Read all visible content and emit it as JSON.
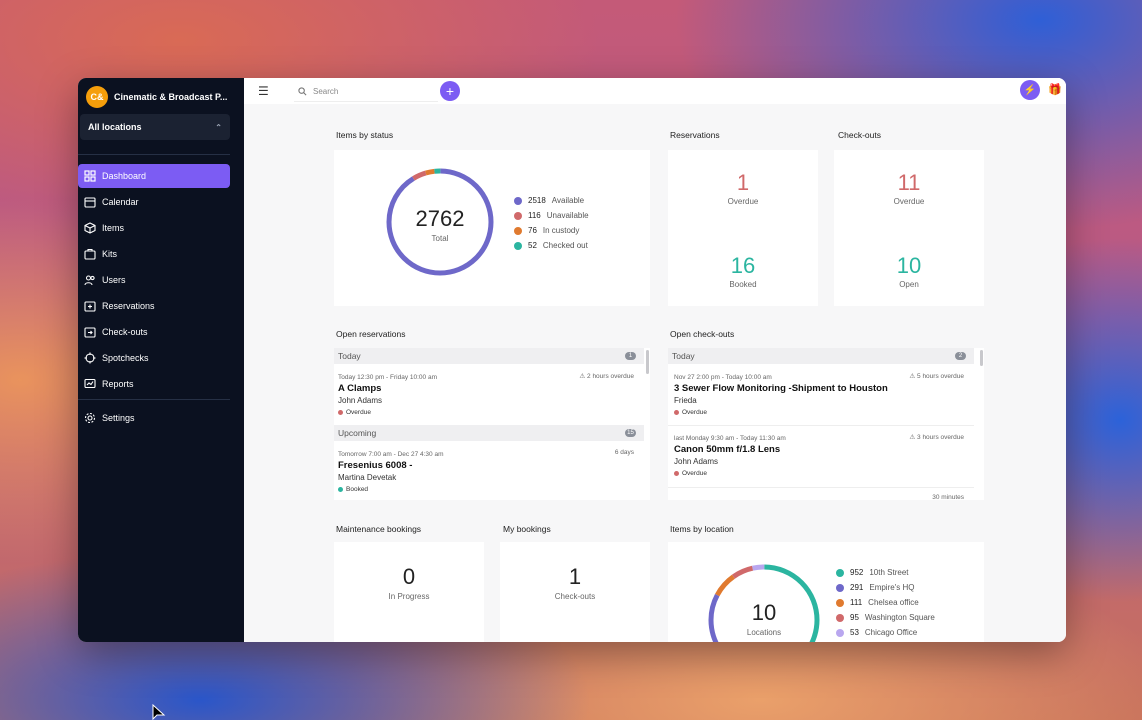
{
  "org": {
    "initials": "C&",
    "name": "Cinematic & Broadcast P..."
  },
  "location_select": {
    "value": "All locations"
  },
  "nav": [
    {
      "label": "Dashboard",
      "icon": "dashboard-icon",
      "active": true
    },
    {
      "label": "Calendar",
      "icon": "calendar-icon"
    },
    {
      "label": "Items",
      "icon": "cube-icon"
    },
    {
      "label": "Kits",
      "icon": "kit-icon"
    },
    {
      "label": "Users",
      "icon": "users-icon"
    },
    {
      "label": "Reservations",
      "icon": "reservation-icon"
    },
    {
      "label": "Check-outs",
      "icon": "checkout-icon"
    },
    {
      "label": "Spotchecks",
      "icon": "target-icon"
    },
    {
      "label": "Reports",
      "icon": "report-icon"
    },
    {
      "label": "Settings",
      "icon": "gear-icon"
    }
  ],
  "topbar": {
    "search_placeholder": "Search"
  },
  "items_by_status": {
    "title": "Items by status",
    "total": "2762",
    "total_label": "Total",
    "legend": [
      {
        "count": "2518",
        "label": "Available",
        "color": "#6e68c9"
      },
      {
        "count": "116",
        "label": "Unavailable",
        "color": "#d0696a"
      },
      {
        "count": "76",
        "label": "In custody",
        "color": "#e07a2f"
      },
      {
        "count": "52",
        "label": "Checked out",
        "color": "#2bb5a0"
      }
    ]
  },
  "reservations": {
    "title": "Reservations",
    "overdue": "1",
    "overdue_label": "Overdue",
    "booked": "16",
    "booked_label": "Booked"
  },
  "checkouts": {
    "title": "Check-outs",
    "overdue": "11",
    "overdue_label": "Overdue",
    "open": "10",
    "open_label": "Open"
  },
  "open_reservations": {
    "title": "Open reservations",
    "today_label": "Today",
    "today_count": "1",
    "today_items": [
      {
        "time": "Today 12:30 pm - Friday 10:00 am",
        "title": "A Clamps",
        "person": "John Adams",
        "status": "Overdue",
        "note": "⚠ 2 hours overdue"
      }
    ],
    "upcoming_label": "Upcoming",
    "upcoming_count": "15",
    "upcoming_items": [
      {
        "time": "Tomorrow 7:00 am - Dec 27 4:30 am",
        "title": "Fresenius 6008 -",
        "person": "Martina Devetak",
        "status": "Booked",
        "note": "6 days"
      }
    ]
  },
  "open_checkouts": {
    "title": "Open check-outs",
    "today_label": "Today",
    "today_count": "2",
    "items": [
      {
        "time": "Nov 27 2:00 pm - Today 10:00 am",
        "title": "3 Sewer Flow Monitoring -Shipment to Houston",
        "person": "Frieda",
        "status": "Overdue",
        "note": "⚠ 5 hours overdue"
      },
      {
        "time": "last Monday 9:30 am - Today 11:30 am",
        "title": "Canon 50mm f/1.8 Lens",
        "person": "John Adams",
        "status": "Overdue",
        "note": "⚠ 3 hours overdue"
      }
    ],
    "partial_note": "30 minutes"
  },
  "maintenance": {
    "title": "Maintenance bookings",
    "value": "0",
    "label": "In Progress"
  },
  "my_bookings": {
    "title": "My bookings",
    "value": "1",
    "label": "Check-outs"
  },
  "items_by_location": {
    "title": "Items by location",
    "total": "10",
    "total_label": "Locations",
    "legend": [
      {
        "count": "952",
        "label": "10th Street",
        "color": "#2bb5a0"
      },
      {
        "count": "291",
        "label": "Empire's HQ",
        "color": "#6e68c9"
      },
      {
        "count": "111",
        "label": "Chelsea office",
        "color": "#e07a2f"
      },
      {
        "count": "95",
        "label": "Washington Square",
        "color": "#d0696a"
      },
      {
        "count": "53",
        "label": "Chicago Office",
        "color": "#b9a7ef"
      }
    ]
  },
  "colors": {
    "accent": "#7c5cf3",
    "overdue": "#d0696a",
    "booked": "#2bb5a0"
  }
}
